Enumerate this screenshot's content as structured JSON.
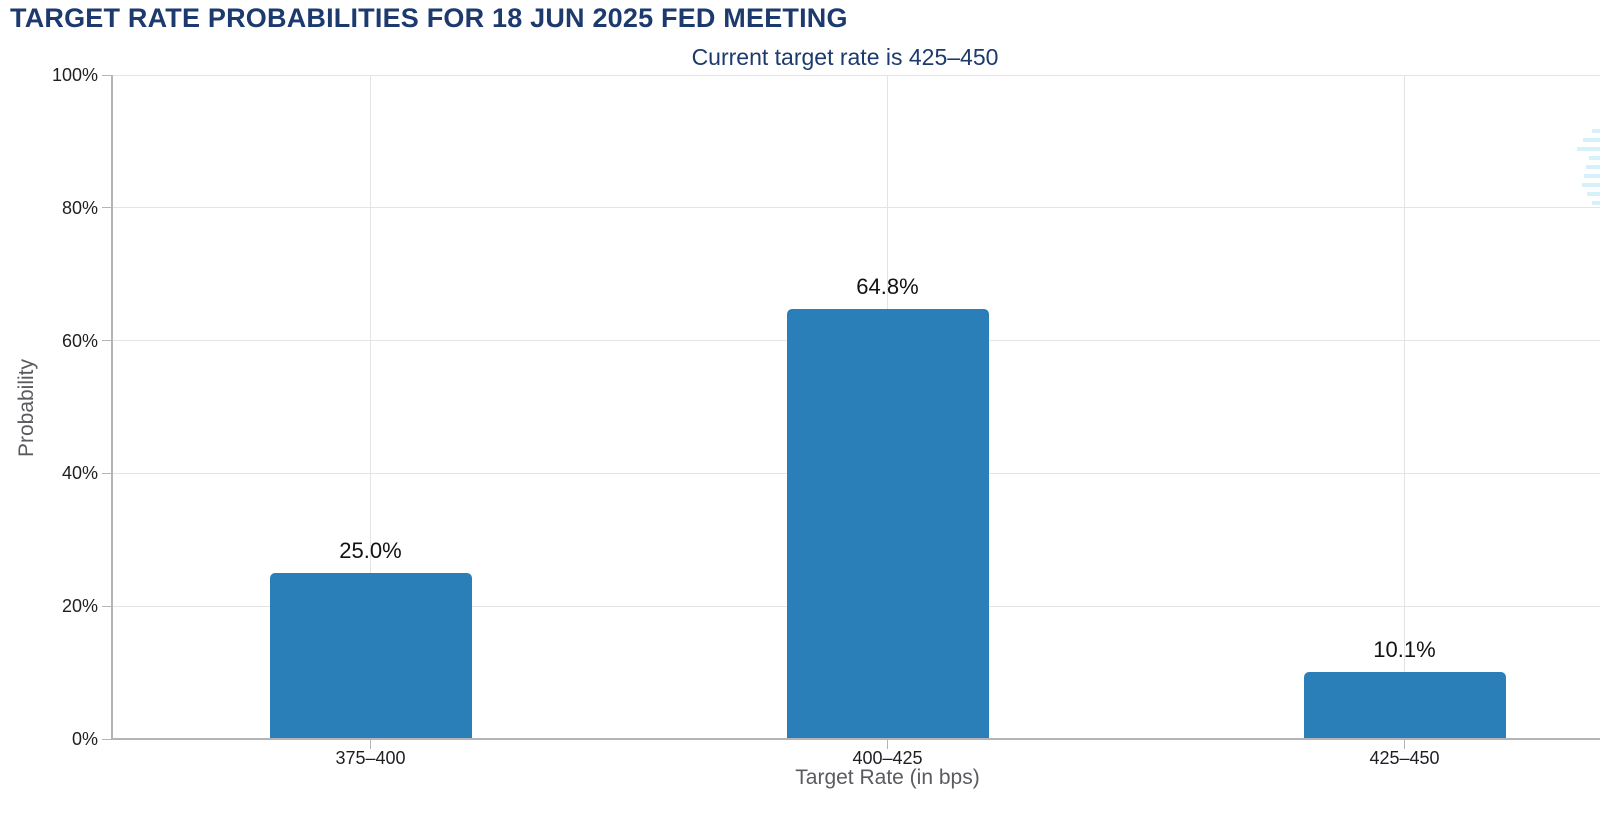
{
  "colors": {
    "navy": "#1c3a6e",
    "bar": "#2b7fb9",
    "grid": "#e4e4e7",
    "axis": "#b3b3b8",
    "tick_text": "#1f1f23",
    "axis_title_text": "#5a5a5f",
    "value_label_text": "#121212",
    "watermark": "#d6f1f9"
  },
  "chart_data": {
    "type": "bar",
    "title": "TARGET RATE PROBABILITIES FOR 18 JUN 2025 FED MEETING",
    "subtitle": "Current target rate is 425–450",
    "categories": [
      "375–400",
      "400–425",
      "425–450"
    ],
    "values": [
      25.0,
      64.8,
      10.1
    ],
    "value_labels": [
      "25.0%",
      "64.8%",
      "10.1%"
    ],
    "xlabel": "Target Rate (in bps)",
    "ylabel": "Probability",
    "ylim": [
      0,
      100
    ],
    "yticks": [
      0,
      20,
      40,
      60,
      80,
      100
    ],
    "ytick_labels": [
      "0%",
      "20%",
      "40%",
      "60%",
      "80%",
      "100%"
    ],
    "grid": true,
    "legend_position": "none",
    "bar_color": "#2b7fb9"
  },
  "watermark": {
    "color": "#d6f1f9",
    "stripe_widths": [
      8,
      17,
      23,
      11,
      14,
      16,
      18,
      13,
      8
    ]
  }
}
